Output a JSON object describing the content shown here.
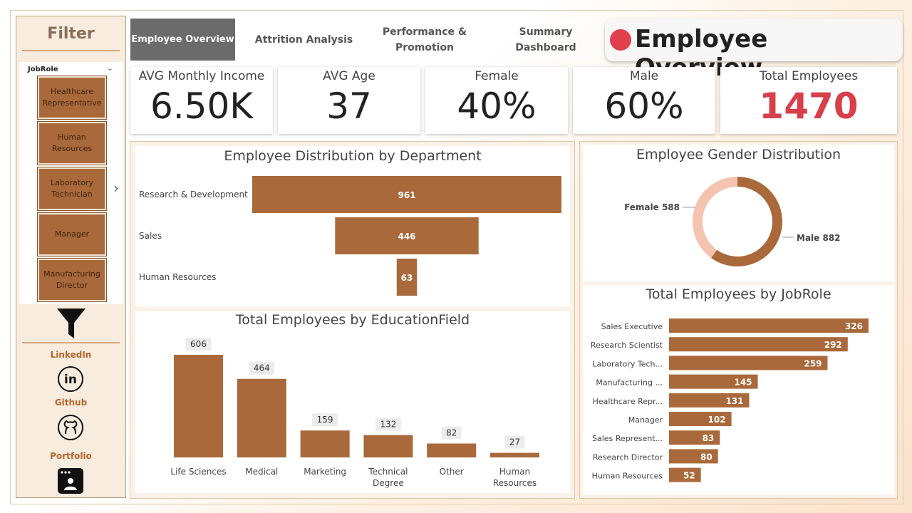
{
  "sidebar": {
    "title": "Filter",
    "slicer": {
      "label": "JobRole",
      "items": [
        "Healthcare Representative",
        "Human Resources",
        "Laboratory Technician",
        "Manager",
        "Manufacturing Director"
      ]
    },
    "links": [
      "LinkedIn",
      "Github",
      "Portfolio"
    ]
  },
  "tabs": [
    "Employee Overview",
    "Attrition Analysis",
    "Performance & Promotion",
    "Summary Dashboard"
  ],
  "page_title": "Employee Overview",
  "kpis": [
    {
      "label": "AVG Monthly Income",
      "value": "6.50K"
    },
    {
      "label": "AVG Age",
      "value": "37"
    },
    {
      "label": "Female",
      "value": "40%"
    },
    {
      "label": "Male",
      "value": "60%"
    },
    {
      "label": "Total Employees",
      "value": "1470"
    }
  ],
  "colors": {
    "bar": "#a9693a",
    "female": "#f4c4b0",
    "male": "#a9693a",
    "accent": "#e0404e"
  },
  "chart_data": [
    {
      "type": "bar",
      "title": "Employee Distribution by Department",
      "orientation": "horizontal-funnel",
      "categories": [
        "Research & Development",
        "Sales",
        "Human Resources"
      ],
      "values": [
        961,
        446,
        63
      ]
    },
    {
      "type": "bar",
      "title": "Total Employees by EducationField",
      "categories": [
        "Life Sciences",
        "Medical",
        "Marketing",
        "Technical Degree",
        "Other",
        "Human Resources"
      ],
      "values": [
        606,
        464,
        159,
        132,
        82,
        27
      ]
    },
    {
      "type": "pie",
      "title": "Employee Gender Distribution",
      "categories": [
        "Female",
        "Male"
      ],
      "values": [
        588,
        882
      ],
      "labels": [
        "Female 588",
        "Male 882"
      ]
    },
    {
      "type": "bar",
      "title": "Total Employees by JobRole",
      "orientation": "horizontal",
      "categories": [
        "Sales Executive",
        "Research Scientist",
        "Laboratory Tech...",
        "Manufacturing ...",
        "Healthcare Repr...",
        "Manager",
        "Sales Represent...",
        "Research Director",
        "Human Resources"
      ],
      "values": [
        326,
        292,
        259,
        145,
        131,
        102,
        83,
        80,
        52
      ]
    }
  ]
}
